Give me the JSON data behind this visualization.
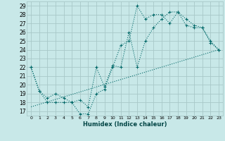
{
  "background_color": "#c8e8e8",
  "grid_color": "#a8c8c8",
  "line_color": "#006868",
  "xlabel": "Humidex (Indice chaleur)",
  "xlim": [
    -0.5,
    23.5
  ],
  "ylim": [
    16.5,
    29.5
  ],
  "yticks": [
    17,
    18,
    19,
    20,
    21,
    22,
    23,
    24,
    25,
    26,
    27,
    28,
    29
  ],
  "xticks": [
    0,
    1,
    2,
    3,
    4,
    5,
    6,
    7,
    8,
    9,
    10,
    11,
    12,
    13,
    14,
    15,
    16,
    17,
    18,
    19,
    20,
    21,
    22,
    23
  ],
  "line1_x": [
    0,
    1,
    2,
    3,
    4,
    5,
    6,
    7,
    8,
    9,
    10,
    11,
    12,
    13,
    14,
    15,
    16,
    17,
    18,
    19,
    20,
    21,
    22,
    23
  ],
  "line1_y": [
    22,
    19.3,
    18,
    18,
    18,
    18,
    16.7,
    16.7,
    19,
    19.5,
    22,
    24.5,
    25,
    29,
    27.5,
    28,
    28,
    27,
    28.3,
    26.8,
    26.5,
    26.5,
    24.8,
    24
  ],
  "line2_x": [
    0,
    1,
    2,
    3,
    4,
    5,
    6,
    7,
    8,
    9,
    10,
    11,
    12,
    13,
    14,
    15,
    16,
    17,
    18,
    19,
    20,
    21,
    22,
    23
  ],
  "line2_y": [
    22,
    19.3,
    18.5,
    19,
    18.5,
    18,
    18.3,
    17.5,
    22,
    19.8,
    22.2,
    22,
    26,
    22,
    25,
    26.5,
    27.5,
    28.3,
    28.3,
    27.5,
    26.8,
    26.5,
    25,
    24
  ],
  "line3_x": [
    0,
    23
  ],
  "line3_y": [
    17.5,
    24
  ]
}
